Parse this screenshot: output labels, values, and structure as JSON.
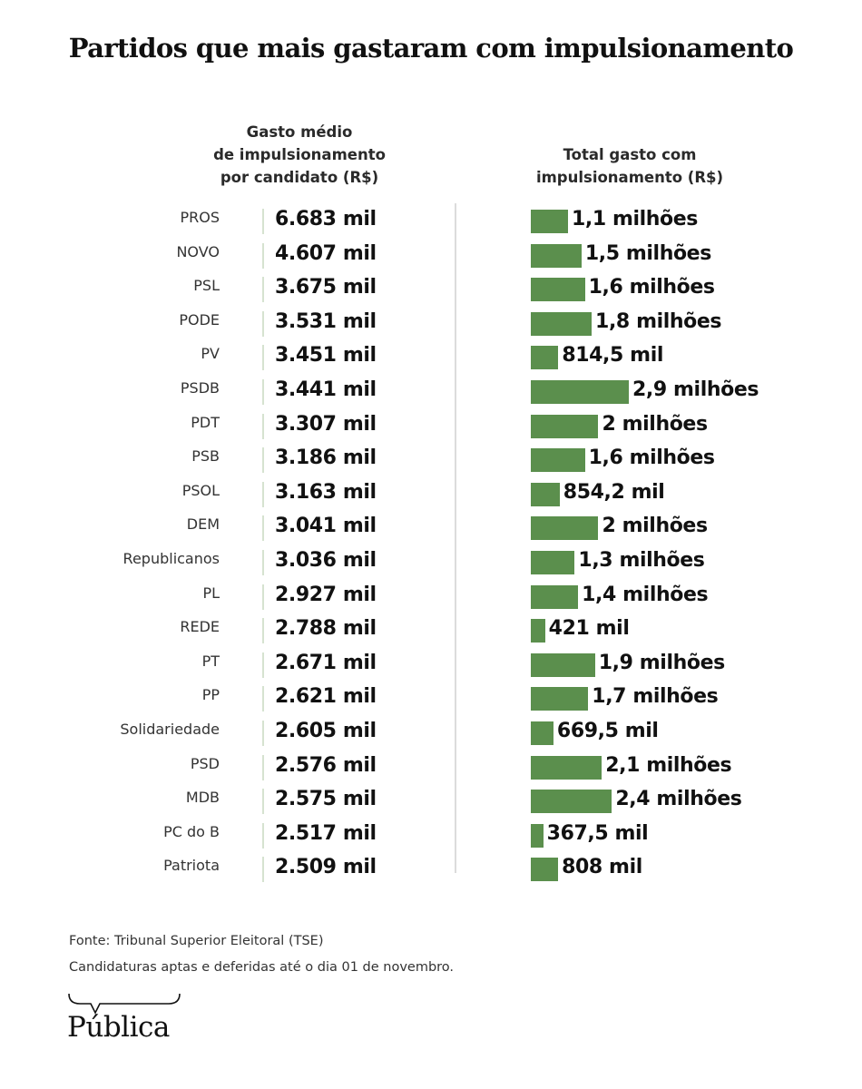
{
  "title": "Partidos que mais gastaram com impulsionamento",
  "columns": {
    "left_header": [
      "Gasto médio",
      "de impulsionamento",
      "por candidato (R$)"
    ],
    "right_header": [
      "Total gasto com",
      "impulsionamento (R$)"
    ]
  },
  "colors": {
    "bar": "#5b8f4d",
    "tick": "#d6e3d0",
    "divider": "#dcdcdc"
  },
  "chart_data": {
    "type": "bar",
    "title": "Partidos que mais gastaram com impulsionamento",
    "orientation": "horizontal",
    "categories": [
      "PROS",
      "NOVO",
      "PSL",
      "PODE",
      "PV",
      "PSDB",
      "PDT",
      "PSB",
      "PSOL",
      "DEM",
      "Republicanos",
      "PL",
      "REDE",
      "PT",
      "PP",
      "Solidariedade",
      "PSD",
      "MDB",
      "PC do B",
      "Patriota"
    ],
    "series": [
      {
        "name": "Gasto médio de impulsionamento por candidato (R$)",
        "values": [
          6683,
          4607,
          3675,
          3531,
          3451,
          3441,
          3307,
          3186,
          3163,
          3041,
          3036,
          2927,
          2788,
          2671,
          2621,
          2605,
          2576,
          2575,
          2517,
          2509
        ],
        "labels": [
          "6.683 mil",
          "4.607 mil",
          "3.675 mil",
          "3.531 mil",
          "3.451 mil",
          "3.441 mil",
          "3.307 mil",
          "3.186 mil",
          "3.163 mil",
          "3.041 mil",
          "3.036 mil",
          "2.927 mil",
          "2.788 mil",
          "2.671 mil",
          "2.621 mil",
          "2.605 mil",
          "2.576 mil",
          "2.575 mil",
          "2.517 mil",
          "2.509 mil"
        ]
      },
      {
        "name": "Total gasto com impulsionamento (R$)",
        "values": [
          1100000,
          1500000,
          1600000,
          1800000,
          814500,
          2900000,
          2000000,
          1600000,
          854200,
          2000000,
          1300000,
          1400000,
          421000,
          1900000,
          1700000,
          669500,
          2100000,
          2400000,
          367500,
          808000
        ],
        "labels": [
          "1,1 milhões",
          "1,5 milhões",
          "1,6 milhões",
          "1,8 milhões",
          "814,5 mil",
          "2,9 milhões",
          "2 milhões",
          "1,6 milhões",
          "854,2 mil",
          "2 milhões",
          "1,3 milhões",
          "1,4 milhões",
          "421 mil",
          "1,9 milhões",
          "1,7 milhões",
          "669,5 mil",
          "2,1 milhões",
          "2,4 milhões",
          "367,5 mil",
          "808 mil"
        ]
      }
    ],
    "xlabel": "",
    "ylabel": "",
    "grid": false
  },
  "footer": {
    "source": "Fonte: Tribunal Superior Eleitoral (TSE)",
    "note": "Candidaturas aptas e deferidas até o dia 01 de novembro.",
    "logo_text": "Pública"
  }
}
